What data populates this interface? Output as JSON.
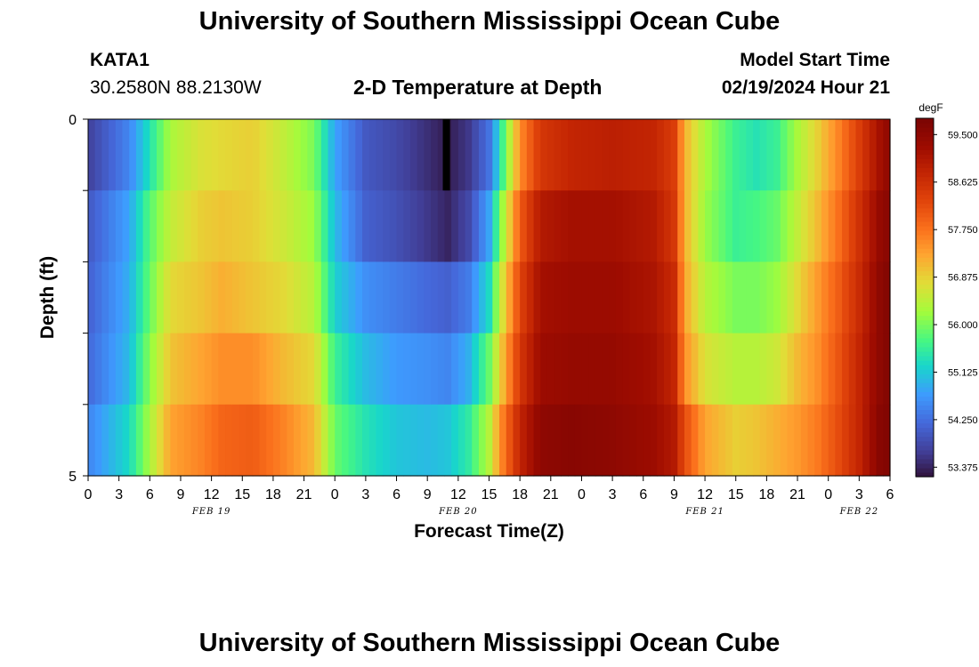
{
  "header": {
    "title": "University of Southern Mississippi Ocean Cube",
    "station": "KATA1",
    "coords": "30.2580N  88.2130W",
    "subtitle": "2-D Temperature at Depth",
    "model_label": "Model Start Time",
    "model_time": "02/19/2024 Hour 21"
  },
  "footer": {
    "title": "University of Southern Mississippi Ocean Cube"
  },
  "colors": {
    "low": "#30123b",
    "high": "#7a0403"
  },
  "chart_data": {
    "type": "heatmap",
    "xlabel": "Forecast Time(Z)",
    "ylabel": "Depth (ft)",
    "ylim": [
      0,
      5
    ],
    "y_ticks": [
      "0",
      "5"
    ],
    "x_tick_labels": [
      "0",
      "3",
      "6",
      "9",
      "12",
      "15",
      "18",
      "21",
      "0",
      "3",
      "6",
      "9",
      "12",
      "15",
      "18",
      "21",
      "0",
      "3",
      "6",
      "9",
      "12",
      "15",
      "18",
      "21",
      "0",
      "3",
      "6"
    ],
    "day_labels": [
      {
        "label": "FEB 19",
        "hour": 12
      },
      {
        "label": "FEB 20",
        "hour": 36
      },
      {
        "label": "FEB 21",
        "hour": 60
      },
      {
        "label": "FEB 22",
        "hour": 75
      }
    ],
    "xlim_hours": [
      0,
      78
    ],
    "depth_layers": 5,
    "colorbar": {
      "unit": "degF",
      "ticks": [
        "59.500",
        "58.625",
        "57.750",
        "56.875",
        "56.000",
        "55.125",
        "54.250",
        "53.375"
      ],
      "range": [
        53.2,
        59.8
      ]
    },
    "time_keyframes": [
      {
        "hour": 0,
        "layers": [
          53.7,
          54.0,
          54.1,
          54.2,
          54.5
        ]
      },
      {
        "hour": 4,
        "layers": [
          54.5,
          54.8,
          54.9,
          55.0,
          55.3
        ]
      },
      {
        "hour": 6,
        "layers": [
          55.4,
          55.8,
          55.9,
          56.1,
          56.3
        ]
      },
      {
        "hour": 8,
        "layers": [
          56.3,
          56.5,
          56.8,
          57.0,
          57.3
        ]
      },
      {
        "hour": 11,
        "layers": [
          56.7,
          56.9,
          57.0,
          57.3,
          57.6
        ]
      },
      {
        "hour": 13,
        "layers": [
          56.8,
          57.0,
          57.2,
          57.5,
          57.9
        ]
      },
      {
        "hour": 16,
        "layers": [
          56.9,
          56.9,
          57.0,
          57.5,
          58.0
        ]
      },
      {
        "hour": 19,
        "layers": [
          56.5,
          56.6,
          56.8,
          57.1,
          57.6
        ]
      },
      {
        "hour": 22,
        "layers": [
          56.0,
          56.2,
          56.4,
          56.8,
          57.1
        ]
      },
      {
        "hour": 24,
        "layers": [
          54.8,
          55.0,
          55.2,
          55.6,
          55.9
        ]
      },
      {
        "hour": 27,
        "layers": [
          54.0,
          54.1,
          54.6,
          55.0,
          55.4
        ]
      },
      {
        "hour": 30,
        "layers": [
          53.8,
          53.9,
          54.4,
          54.7,
          55.1
        ]
      },
      {
        "hour": 33,
        "layers": [
          53.5,
          53.6,
          54.2,
          54.6,
          55.0
        ]
      },
      {
        "hour": 35,
        "layers": [
          53.3,
          53.4,
          54.1,
          54.5,
          55.1
        ]
      },
      {
        "hour": 37,
        "layers": [
          53.6,
          53.8,
          54.4,
          54.9,
          55.5
        ]
      },
      {
        "hour": 39,
        "layers": [
          54.3,
          54.8,
          55.3,
          55.9,
          56.4
        ]
      },
      {
        "hour": 40,
        "layers": [
          55.3,
          55.9,
          56.4,
          56.8,
          57.4
        ]
      },
      {
        "hour": 42,
        "layers": [
          57.5,
          58.0,
          58.3,
          58.5,
          58.8
        ]
      },
      {
        "hour": 44,
        "layers": [
          58.5,
          59.0,
          59.2,
          59.3,
          59.5
        ]
      },
      {
        "hour": 47,
        "layers": [
          58.8,
          59.2,
          59.3,
          59.4,
          59.6
        ]
      },
      {
        "hour": 51,
        "layers": [
          58.9,
          59.2,
          59.3,
          59.4,
          59.5
        ]
      },
      {
        "hour": 55,
        "layers": [
          58.8,
          59.0,
          59.1,
          59.2,
          59.3
        ]
      },
      {
        "hour": 57,
        "layers": [
          58.4,
          58.5,
          58.7,
          58.8,
          59.0
        ]
      },
      {
        "hour": 58,
        "layers": [
          57.2,
          57.2,
          57.3,
          57.5,
          58.2
        ]
      },
      {
        "hour": 60,
        "layers": [
          56.3,
          56.2,
          56.4,
          56.7,
          57.3
        ]
      },
      {
        "hour": 63,
        "layers": [
          55.6,
          55.6,
          56.0,
          56.4,
          56.9
        ]
      },
      {
        "hour": 65,
        "layers": [
          55.4,
          55.7,
          56.0,
          56.4,
          57.0
        ]
      },
      {
        "hour": 67,
        "layers": [
          55.6,
          55.9,
          56.2,
          56.6,
          57.2
        ]
      },
      {
        "hour": 69,
        "layers": [
          56.3,
          56.5,
          56.8,
          57.1,
          57.4
        ]
      },
      {
        "hour": 71,
        "layers": [
          56.9,
          57.1,
          57.4,
          57.5,
          57.7
        ]
      },
      {
        "hour": 73,
        "layers": [
          57.6,
          57.8,
          58.0,
          58.1,
          58.2
        ]
      },
      {
        "hour": 75,
        "layers": [
          58.4,
          58.6,
          58.7,
          58.8,
          58.8
        ]
      },
      {
        "hour": 77,
        "layers": [
          59.2,
          59.4,
          59.5,
          59.5,
          59.6
        ]
      },
      {
        "hour": 78,
        "layers": [
          59.5,
          59.6,
          59.7,
          59.7,
          59.7
        ]
      }
    ],
    "marker": {
      "hour_start": 34.5,
      "hour_end": 35.2,
      "depth_start": 0,
      "depth_end": 1
    }
  }
}
